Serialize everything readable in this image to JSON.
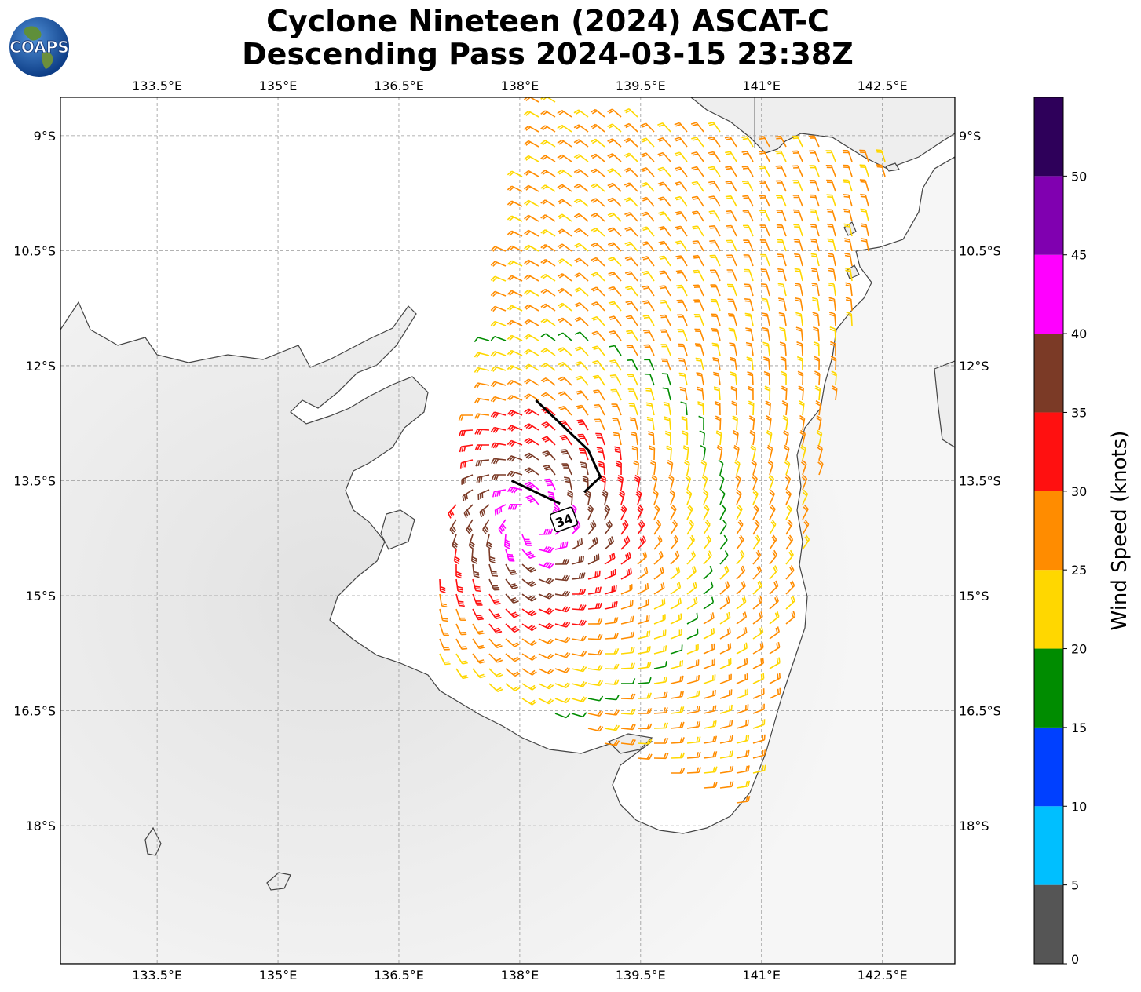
{
  "title_line1": "Cyclone Nineteen (2024) ASCAT-C",
  "title_line2": "Descending Pass 2024-03-15 23:38Z",
  "logo_text": "COAPS",
  "map": {
    "lon_range": [
      132.3,
      143.4
    ],
    "lat_range": [
      -19.8,
      -8.5
    ],
    "lon_ticks": [
      {
        "value": 133.5,
        "label": "133.5°E"
      },
      {
        "value": 135.0,
        "label": "135°E"
      },
      {
        "value": 136.5,
        "label": "136.5°E"
      },
      {
        "value": 138.0,
        "label": "138°E"
      },
      {
        "value": 139.5,
        "label": "139.5°E"
      },
      {
        "value": 141.0,
        "label": "141°E"
      },
      {
        "value": 142.5,
        "label": "142.5°E"
      }
    ],
    "lat_ticks": [
      {
        "value": -9.0,
        "label": "9°S"
      },
      {
        "value": -10.5,
        "label": "10.5°S"
      },
      {
        "value": -12.0,
        "label": "12°S"
      },
      {
        "value": -13.5,
        "label": "13.5°S"
      },
      {
        "value": -15.0,
        "label": "15°S"
      },
      {
        "value": -16.5,
        "label": "16.5°S"
      },
      {
        "value": -18.0,
        "label": "18°S"
      }
    ],
    "grid": true,
    "contour_label": "34",
    "contour_34kt": [
      [
        138.2,
        -12.45
      ],
      [
        138.5,
        -12.75
      ],
      [
        138.85,
        -13.1
      ],
      [
        139.0,
        -13.45
      ],
      [
        138.8,
        -13.65
      ]
    ],
    "contour_34kt_b": [
      [
        137.9,
        -13.5
      ],
      [
        138.2,
        -13.65
      ],
      [
        138.5,
        -13.8
      ]
    ],
    "storm_center": [
      138.15,
      -14.05
    ]
  },
  "colorbar": {
    "label": "Wind Speed (knots)",
    "range": [
      0,
      55
    ],
    "bins": [
      {
        "from": 0,
        "to": 5,
        "color": "#555555"
      },
      {
        "from": 5,
        "to": 10,
        "color": "#00BFFF"
      },
      {
        "from": 10,
        "to": 15,
        "color": "#0040FF"
      },
      {
        "from": 15,
        "to": 20,
        "color": "#008C00"
      },
      {
        "from": 20,
        "to": 25,
        "color": "#FFD700"
      },
      {
        "from": 25,
        "to": 30,
        "color": "#FF8C00"
      },
      {
        "from": 30,
        "to": 35,
        "color": "#FF1010"
      },
      {
        "from": 35,
        "to": 40,
        "color": "#7B3A26"
      },
      {
        "from": 40,
        "to": 45,
        "color": "#FF00FF"
      },
      {
        "from": 45,
        "to": 50,
        "color": "#8000B0"
      },
      {
        "from": 50,
        "to": 55,
        "color": "#2E005A"
      }
    ],
    "ticks": [
      "0",
      "5",
      "10",
      "15",
      "20",
      "25",
      "30",
      "35",
      "40",
      "45",
      "50"
    ]
  }
}
